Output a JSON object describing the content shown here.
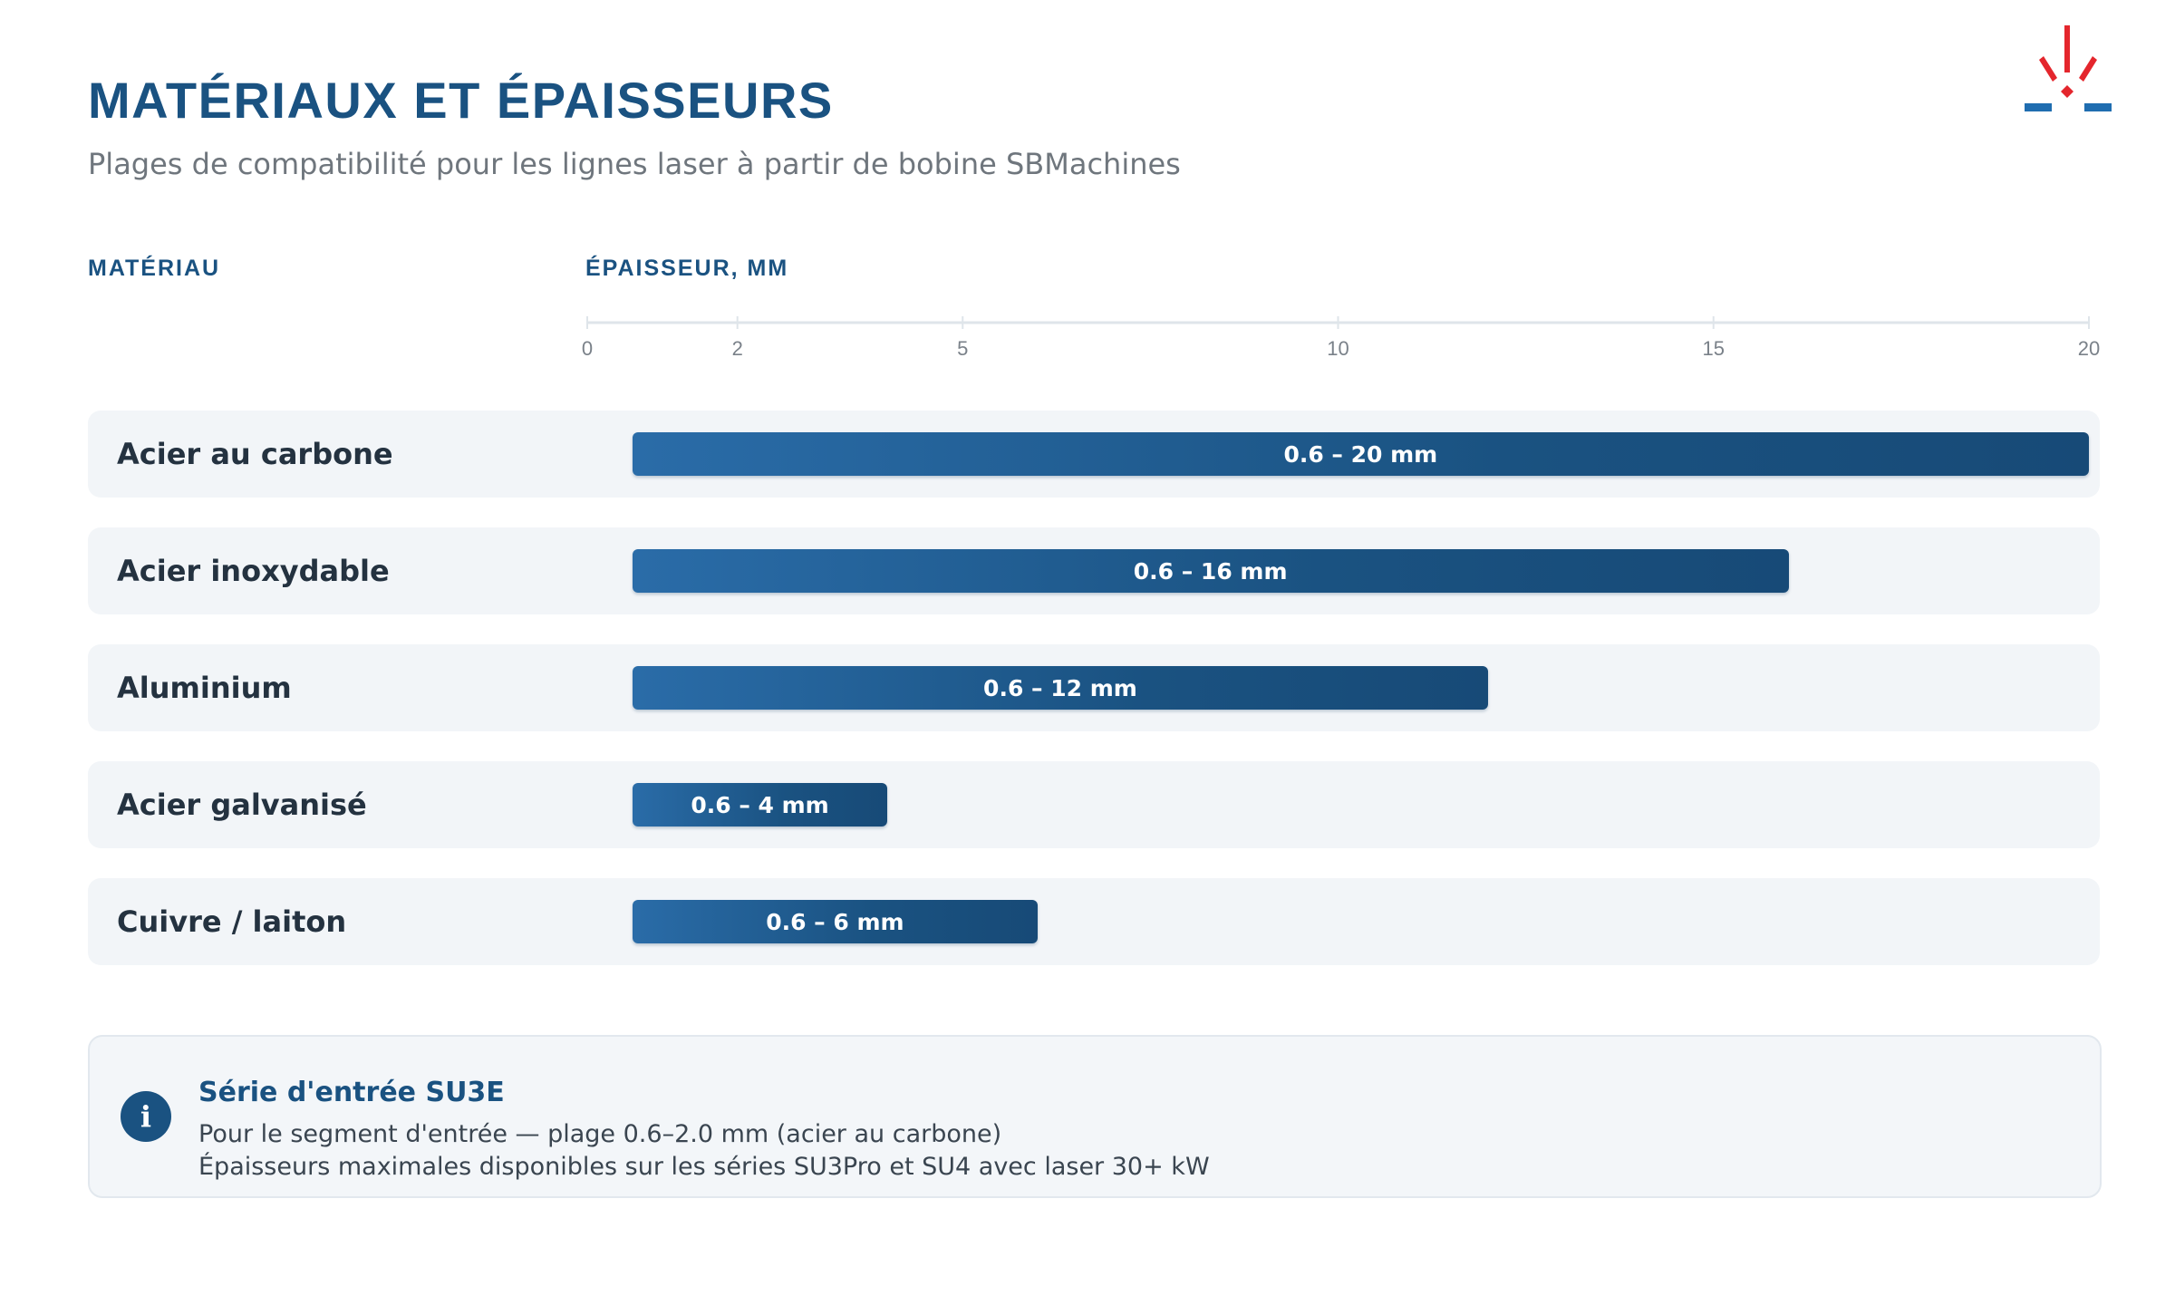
{
  "header": {
    "title": "MATÉRIAUX ET ÉPAISSEURS",
    "subtitle": "Plages de compatibilité pour les lignes laser à partir de bobine SBMachines"
  },
  "columns": {
    "material": "MATÉRIAU",
    "thickness": "ÉPAISSEUR, MM"
  },
  "colors": {
    "brand": "#1a5281",
    "accent": "#e4262d",
    "row_bg": "#f2f5f8"
  },
  "chart_data": {
    "type": "bar",
    "orientation": "horizontal",
    "xlabel": "ÉPAISSEUR, MM",
    "xlim": [
      0,
      20
    ],
    "x_ticks": [
      0,
      2,
      5,
      10,
      15,
      20
    ],
    "grid": false,
    "categories": [
      "Acier au carbone",
      "Acier inoxydable",
      "Aluminium",
      "Acier galvanisé",
      "Cuivre / laiton"
    ],
    "ranges": [
      {
        "min": 0.6,
        "max": 20,
        "label": "0.6 – 20 mm"
      },
      {
        "min": 0.6,
        "max": 16,
        "label": "0.6 – 16 mm"
      },
      {
        "min": 0.6,
        "max": 12,
        "label": "0.6 – 12 mm"
      },
      {
        "min": 0.6,
        "max": 4,
        "label": "0.6 – 4 mm"
      },
      {
        "min": 0.6,
        "max": 6,
        "label": "0.6 – 6 mm"
      }
    ]
  },
  "info": {
    "icon": "info-icon",
    "icon_glyph": "i",
    "title": "Série d'entrée SU3E",
    "line1": "Pour le segment d'entrée — plage 0.6–2.0 mm (acier au carbone)",
    "line2": "Épaisseurs maximales disponibles sur les séries SU3Pro et SU4 avec laser 30+ kW"
  }
}
